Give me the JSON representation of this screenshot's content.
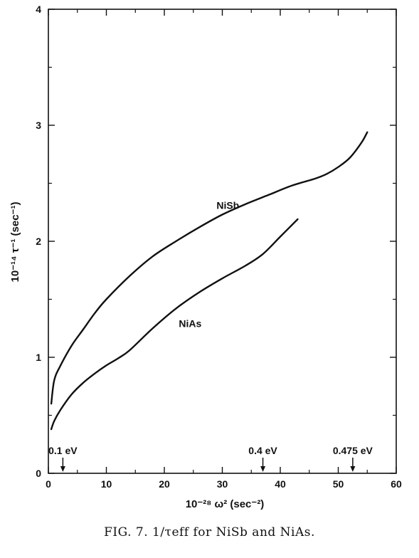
{
  "chart_data": {
    "type": "line",
    "xlabel": "10⁻²⁸ ω² (sec⁻²)",
    "ylabel": "10⁻¹⁴ τ⁻¹ (sec⁻¹)",
    "xlim": [
      0,
      60
    ],
    "ylim": [
      0,
      4
    ],
    "x_ticks": [
      0,
      10,
      20,
      30,
      40,
      50,
      60
    ],
    "y_ticks": [
      0,
      1,
      2,
      3,
      4
    ],
    "grid": false,
    "series": [
      {
        "name": "NiSb",
        "x": [
          0.5,
          1,
          2,
          4,
          6,
          8,
          10,
          14,
          18,
          22,
          26,
          30,
          34,
          38,
          42,
          46,
          48,
          50,
          52,
          54,
          55
        ],
        "y": [
          0.6,
          0.8,
          0.92,
          1.1,
          1.24,
          1.38,
          1.5,
          1.7,
          1.87,
          2.0,
          2.12,
          2.23,
          2.32,
          2.4,
          2.48,
          2.54,
          2.58,
          2.64,
          2.72,
          2.85,
          2.94
        ]
      },
      {
        "name": "NiAs",
        "x": [
          0.5,
          1,
          2,
          4,
          6,
          8,
          10,
          12,
          14,
          18,
          22,
          26,
          30,
          34,
          37,
          40,
          43
        ],
        "y": [
          0.38,
          0.45,
          0.54,
          0.68,
          0.78,
          0.86,
          0.93,
          0.99,
          1.06,
          1.25,
          1.42,
          1.56,
          1.68,
          1.79,
          1.89,
          2.04,
          2.19
        ]
      }
    ],
    "markers": [
      {
        "x": 2.5,
        "label": "0.1 eV"
      },
      {
        "x": 37,
        "label": "0.4 eV"
      },
      {
        "x": 52.5,
        "label": "0.475 eV"
      }
    ],
    "colors": {
      "line": "#111111",
      "background": "#ffffff"
    }
  },
  "caption": "FIG. 7.  1/τeff for NiSb and NiAs."
}
